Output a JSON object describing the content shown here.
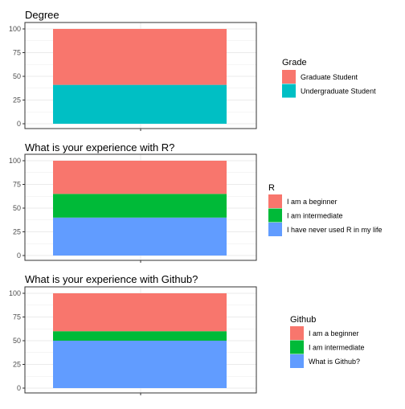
{
  "chart_data": [
    {
      "type": "bar",
      "stacked": true,
      "title": "Degree",
      "categories": [
        ""
      ],
      "ylim": [
        0,
        100
      ],
      "yticks": [
        "0",
        "25",
        "50",
        "75",
        "100"
      ],
      "grid": true,
      "legend_title": "Grade",
      "legend_position": "right",
      "series": [
        {
          "name": "Undergraduate Student",
          "values": [
            41
          ],
          "color": "#00BFC4"
        },
        {
          "name": "Graduate Student",
          "values": [
            59
          ],
          "color": "#F8766D"
        }
      ]
    },
    {
      "type": "bar",
      "stacked": true,
      "title": "What is your experience with R?",
      "categories": [
        ""
      ],
      "ylim": [
        0,
        100
      ],
      "yticks": [
        "0",
        "25",
        "50",
        "75",
        "100"
      ],
      "grid": true,
      "legend_title": "R",
      "legend_position": "right",
      "series": [
        {
          "name": "I have never used R in my life",
          "values": [
            40
          ],
          "color": "#619CFF"
        },
        {
          "name": "I am intermediate",
          "values": [
            25
          ],
          "color": "#00BA38"
        },
        {
          "name": "I am a beginner",
          "values": [
            35
          ],
          "color": "#F8766D"
        }
      ]
    },
    {
      "type": "bar",
      "stacked": true,
      "title": "What is your experience with Github?",
      "categories": [
        ""
      ],
      "ylim": [
        0,
        100
      ],
      "yticks": [
        "0",
        "25",
        "50",
        "75",
        "100"
      ],
      "grid": true,
      "legend_title": "Github",
      "legend_position": "right",
      "series": [
        {
          "name": "What is Github?",
          "values": [
            50
          ],
          "color": "#619CFF"
        },
        {
          "name": "I am intermediate",
          "values": [
            10
          ],
          "color": "#00BA38"
        },
        {
          "name": "I am a beginner",
          "values": [
            40
          ],
          "color": "#F8766D"
        }
      ]
    }
  ]
}
